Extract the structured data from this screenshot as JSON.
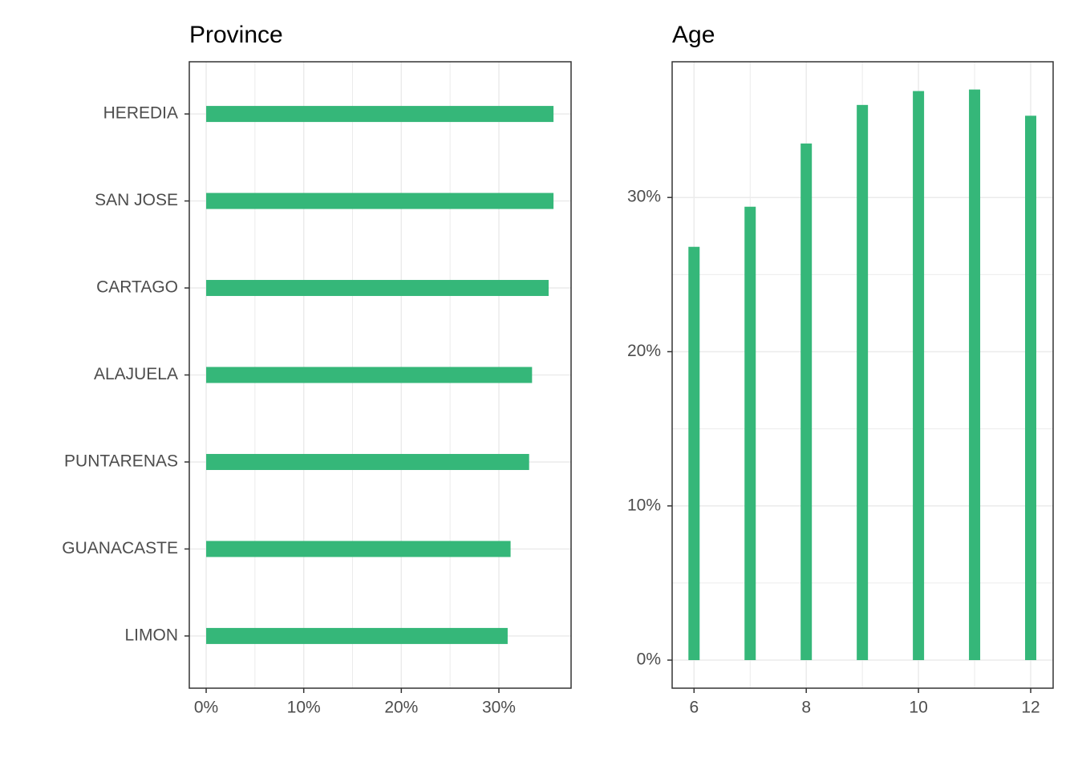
{
  "chart_data": [
    {
      "type": "bar",
      "orientation": "horizontal",
      "title": "Province",
      "categories": [
        "HEREDIA",
        "SAN JOSE",
        "CARTAGO",
        "ALAJUELA",
        "PUNTARENAS",
        "GUANACASTE",
        "LIMON"
      ],
      "values": [
        35.6,
        35.6,
        35.1,
        33.4,
        33.1,
        31.2,
        30.9
      ],
      "color": "#35b779",
      "xlim": [
        -1.73,
        37.4
      ],
      "xticks": [
        {
          "value": 0,
          "label": "0%"
        },
        {
          "value": 10,
          "label": "10%"
        },
        {
          "value": 20,
          "label": "20%"
        },
        {
          "value": 30,
          "label": "30%"
        }
      ],
      "grid": true
    },
    {
      "type": "bar",
      "orientation": "vertical",
      "title": "Age",
      "x": [
        6,
        7,
        8,
        9,
        10,
        11,
        12
      ],
      "values": [
        26.8,
        29.4,
        33.5,
        36.0,
        36.9,
        37.0,
        35.3
      ],
      "color": "#35b779",
      "xlim": [
        5.61,
        12.4
      ],
      "xticks": [
        6,
        8,
        10,
        12
      ],
      "ylim": [
        -1.82,
        38.8
      ],
      "yticks": [
        {
          "value": 0,
          "label": "0%"
        },
        {
          "value": 10,
          "label": "10%"
        },
        {
          "value": 20,
          "label": "20%"
        },
        {
          "value": 30,
          "label": "30%"
        }
      ],
      "grid": true
    }
  ]
}
